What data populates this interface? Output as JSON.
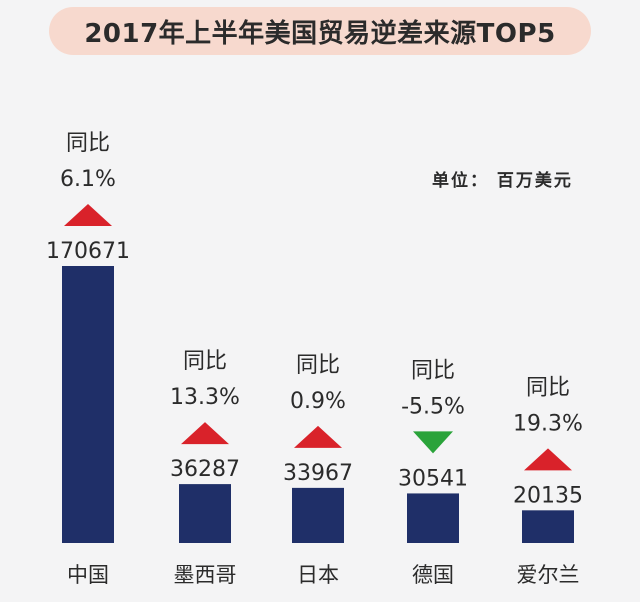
{
  "title": "2017年上半年美国贸易逆差来源TOP5",
  "unit_label": "单位： 百万美元",
  "colors": {
    "bar": "#1f2f68",
    "up_arrow": "#d9222a",
    "down_arrow": "#2aa33a",
    "title_bg": "#f7d9ce",
    "text": "#2b2b2b"
  },
  "chart_data": {
    "type": "bar",
    "title": "2017年上半年美国贸易逆差来源TOP5",
    "unit": "百万美元",
    "categories": [
      "中国",
      "墨西哥",
      "日本",
      "德国",
      "爱尔兰"
    ],
    "values": [
      170671,
      36287,
      33967,
      30541,
      20135
    ],
    "value_labels": [
      "170671",
      "36287",
      "33967",
      "30541",
      "20135"
    ],
    "yoy_label": "同比",
    "yoy_change": [
      "6.1%",
      "13.3%",
      "0.9%",
      "-5.5%",
      "19.3%"
    ],
    "yoy_direction": [
      "up",
      "up",
      "up",
      "down",
      "up"
    ],
    "grid": false,
    "legend": "none"
  }
}
